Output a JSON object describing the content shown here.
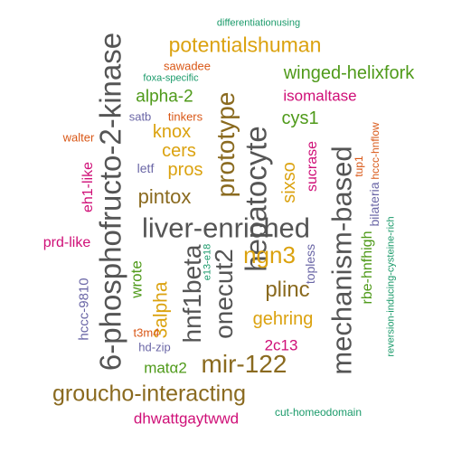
{
  "colors": {
    "gray": "#555555",
    "brown": "#8a6a1f",
    "gold": "#dba20f",
    "green": "#4f9a1a",
    "magenta": "#cf0f77",
    "orange": "#d95716",
    "purple": "#6a66a6",
    "teal": "#1a9a6a"
  },
  "words": [
    {
      "text": "liver-enriched",
      "color": "gray"
    },
    {
      "text": "6-phosphofructo-2-kinase",
      "color": "gray"
    },
    {
      "text": "mechanism-based",
      "color": "gray"
    },
    {
      "text": "hepatocyte",
      "color": "gray"
    },
    {
      "text": "prototype",
      "color": "brown"
    },
    {
      "text": "groucho-interacting",
      "color": "brown"
    },
    {
      "text": "mir-122",
      "color": "brown"
    },
    {
      "text": "onecut2",
      "color": "gray"
    },
    {
      "text": "hnf1beta",
      "color": "gray"
    },
    {
      "text": "ngn3",
      "color": "gold"
    },
    {
      "text": "potentialshuman",
      "color": "gold"
    },
    {
      "text": "winged-helixfork",
      "color": "green"
    },
    {
      "text": "pintox",
      "color": "brown"
    },
    {
      "text": "plinc",
      "color": "brown"
    },
    {
      "text": "gehring",
      "color": "gold"
    },
    {
      "text": "3alpha",
      "color": "gold"
    },
    {
      "text": "sixso",
      "color": "gold"
    },
    {
      "text": "cys1",
      "color": "green"
    },
    {
      "text": "alpha-2",
      "color": "green"
    },
    {
      "text": "knox",
      "color": "gold"
    },
    {
      "text": "cers",
      "color": "gold"
    },
    {
      "text": "pros",
      "color": "gold"
    },
    {
      "text": "isomaltase",
      "color": "magenta"
    },
    {
      "text": "dhwattgaytwwd",
      "color": "magenta"
    },
    {
      "text": "matα2",
      "color": "green"
    },
    {
      "text": "2c13",
      "color": "magenta"
    },
    {
      "text": "wrote",
      "color": "green"
    },
    {
      "text": "sucrase",
      "color": "magenta"
    },
    {
      "text": "rbe-hnfhigh",
      "color": "green"
    },
    {
      "text": "prd-like",
      "color": "magenta"
    },
    {
      "text": "eh1-like",
      "color": "magenta"
    },
    {
      "text": "hccc-9810",
      "color": "purple"
    },
    {
      "text": "topless",
      "color": "purple"
    },
    {
      "text": "bilateria",
      "color": "purple"
    },
    {
      "text": "letf",
      "color": "purple"
    },
    {
      "text": "sawadee",
      "color": "orange"
    },
    {
      "text": "tinkers",
      "color": "orange"
    },
    {
      "text": "satb",
      "color": "purple"
    },
    {
      "text": "walter",
      "color": "orange"
    },
    {
      "text": "t3m4",
      "color": "orange"
    },
    {
      "text": "hd-zip",
      "color": "purple"
    },
    {
      "text": "tup1",
      "color": "orange"
    },
    {
      "text": "hccc-hnflow",
      "color": "orange"
    },
    {
      "text": "foxa-specific",
      "color": "teal"
    },
    {
      "text": "differentiationusing",
      "color": "teal"
    },
    {
      "text": "e13-e18",
      "color": "teal"
    },
    {
      "text": "reversion-inducing-cysteine-rich",
      "color": "teal"
    },
    {
      "text": "cut-homeodomain",
      "color": "teal"
    }
  ]
}
